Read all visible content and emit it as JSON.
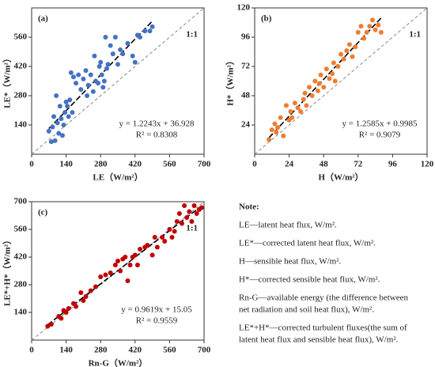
{
  "chart_data": [
    {
      "type": "scatter",
      "panel": "(a)",
      "annotation": "1:1",
      "equation": "y = 1.2243x + 36.928",
      "r2": "R² = 0.8308",
      "xlabel": "LE（W/m²）",
      "ylabel": "LE*（W/m²）",
      "color": "#4472c4",
      "fit": {
        "slope": 1.2243,
        "intercept": 36.928
      },
      "xlim": [
        0,
        700
      ],
      "ylim": [
        0,
        700
      ],
      "xticks": [
        0,
        140,
        280,
        420,
        560,
        700
      ],
      "yticks": [
        140,
        280,
        420,
        560
      ],
      "x": [
        70,
        80,
        85,
        90,
        95,
        100,
        105,
        110,
        115,
        120,
        125,
        130,
        135,
        140,
        145,
        150,
        155,
        160,
        165,
        170,
        180,
        190,
        200,
        210,
        220,
        225,
        230,
        240,
        250,
        255,
        260,
        270,
        275,
        280,
        285,
        290,
        295,
        300,
        305,
        310,
        320,
        330,
        340,
        350,
        360,
        370,
        390,
        410,
        420,
        430,
        440,
        460,
        480,
        490
      ],
      "values": [
        110,
        60,
        130,
        180,
        65,
        280,
        150,
        100,
        230,
        170,
        90,
        140,
        200,
        250,
        230,
        180,
        260,
        390,
        200,
        370,
        340,
        380,
        310,
        360,
        400,
        280,
        330,
        380,
        300,
        470,
        350,
        340,
        420,
        440,
        380,
        320,
        350,
        560,
        410,
        430,
        520,
        480,
        560,
        430,
        500,
        480,
        530,
        470,
        440,
        570,
        560,
        590,
        590,
        610
      ]
    },
    {
      "type": "scatter",
      "panel": "(b)",
      "annotation": "1:1",
      "equation": "y = 1.2585x + 0.9985",
      "r2": "R² = 0.9079",
      "xlabel": "H（W/m²）",
      "ylabel": "H*（W/m²）",
      "color": "#ed7d31",
      "fit": {
        "slope": 1.2585,
        "intercept": 0.9985
      },
      "xlim": [
        0,
        120
      ],
      "ylim": [
        0,
        120
      ],
      "xticks": [
        0,
        24,
        48,
        72,
        96,
        120
      ],
      "yticks": [
        24,
        48,
        72,
        96,
        120
      ],
      "x": [
        10,
        12,
        14,
        15,
        16,
        18,
        20,
        22,
        24,
        25,
        26,
        28,
        30,
        32,
        34,
        35,
        36,
        38,
        40,
        42,
        44,
        45,
        46,
        48,
        50,
        52,
        54,
        55,
        56,
        58,
        60,
        62,
        64,
        66,
        68,
        70,
        72,
        74,
        76,
        78,
        80,
        82,
        84,
        86,
        88
      ],
      "values": [
        12,
        20,
        25,
        18,
        22,
        30,
        15,
        40,
        28,
        35,
        30,
        42,
        38,
        35,
        45,
        50,
        40,
        55,
        48,
        60,
        52,
        58,
        65,
        55,
        70,
        62,
        66,
        75,
        60,
        72,
        82,
        78,
        85,
        90,
        80,
        88,
        100,
        105,
        95,
        100,
        105,
        110,
        102,
        106,
        100
      ]
    },
    {
      "type": "scatter",
      "panel": "(c)",
      "annotation": "1:1",
      "equation": "y = 0.9619x + 15.05",
      "r2": "R² = 0.9559",
      "xlabel": "Rn-G（W/m²）",
      "ylabel": "LE*+H*（W/m²）",
      "color": "#c00000",
      "fit": {
        "slope": 0.9619,
        "intercept": 15.05
      },
      "xlim": [
        0,
        700
      ],
      "ylim": [
        0,
        700
      ],
      "xticks": [
        0,
        140,
        280,
        420,
        560,
        700
      ],
      "yticks": [
        140,
        280,
        420,
        560,
        700
      ],
      "x": [
        65,
        80,
        110,
        120,
        130,
        140,
        150,
        170,
        180,
        200,
        210,
        220,
        240,
        260,
        280,
        300,
        320,
        340,
        350,
        360,
        370,
        380,
        390,
        400,
        410,
        420,
        430,
        440,
        460,
        470,
        490,
        500,
        510,
        530,
        540,
        560,
        570,
        580,
        590,
        600,
        610,
        620,
        630,
        640,
        650,
        660,
        670,
        680,
        690
      ],
      "values": [
        70,
        80,
        120,
        110,
        150,
        140,
        160,
        185,
        170,
        240,
        200,
        220,
        250,
        270,
        320,
        330,
        340,
        380,
        400,
        350,
        410,
        420,
        300,
        380,
        420,
        430,
        380,
        460,
        470,
        480,
        430,
        520,
        470,
        520,
        500,
        560,
        520,
        550,
        600,
        640,
        590,
        680,
        620,
        650,
        600,
        680,
        640,
        660,
        670
      ]
    }
  ],
  "note": {
    "title": "Note:",
    "lines": [
      "LE—latent heat flux, W/m².",
      "LE*—corrected latent heat flux, W/m².",
      "H—sensible heat flux, W/m².",
      "H*—corrected sensible heat flux, W/m².",
      "Rn-G—available energy (the difference between",
      "net radiation and soil heat flux), W/m².",
      "LE*+H*—corrected turbulent fluxes(the sum of",
      "latent heat flux and sensible heat flux), W/m²."
    ]
  }
}
